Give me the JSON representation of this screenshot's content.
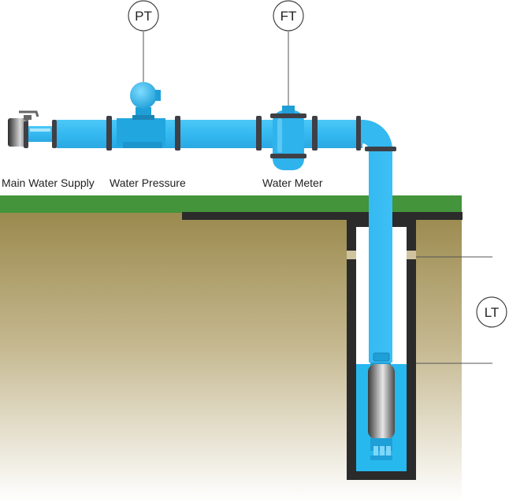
{
  "labels": {
    "main_water_supply": "Main Water Supply",
    "water_pressure": "Water Pressure",
    "water_meter": "Water Meter"
  },
  "instruments": {
    "pressure_transmitter": "PT",
    "flow_transmitter": "FT",
    "level_transmitter": "LT"
  },
  "colors": {
    "pipe": "#3bbdf3",
    "pipe_dark": "#1e9fd8",
    "water": "#27b8ee",
    "grass": "#43943b",
    "soil_top": "#9b8a4e",
    "soil_bottom": "#ffffff",
    "well_wall": "#2b2b2b",
    "flange": "#3f3f46"
  }
}
